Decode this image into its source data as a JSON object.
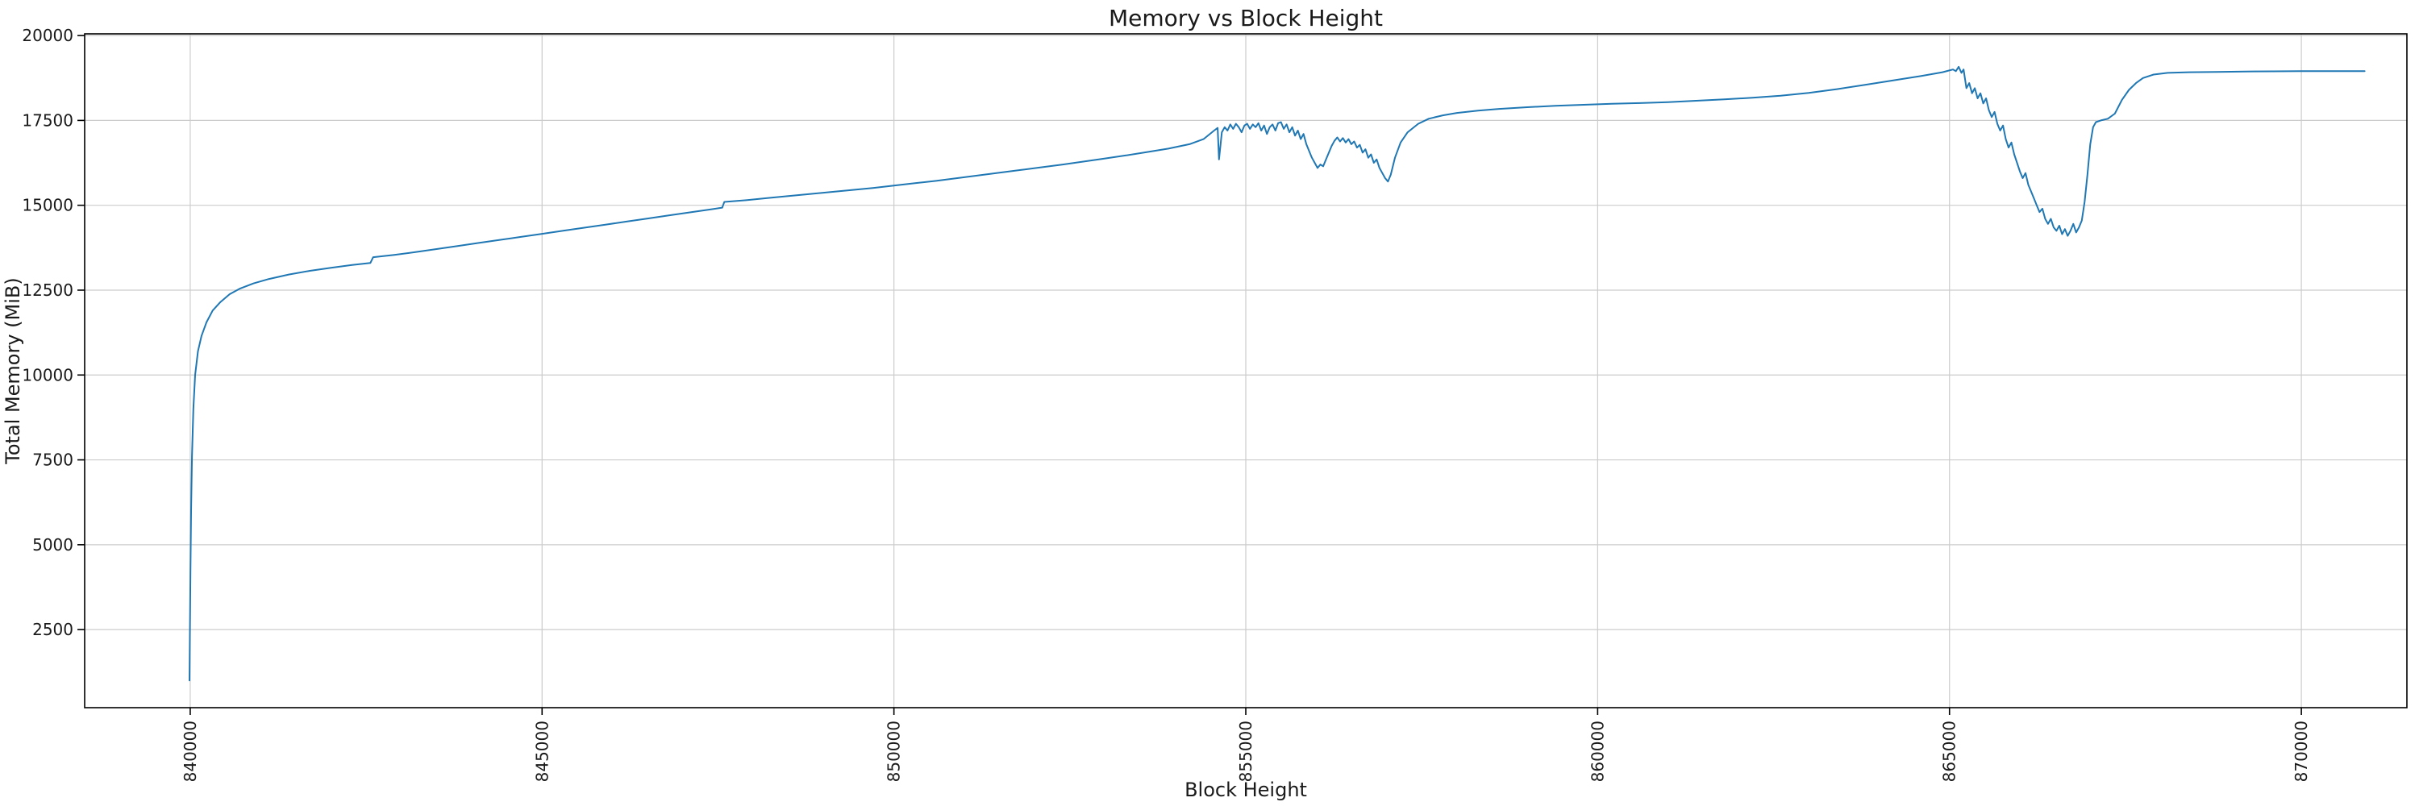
{
  "page": {
    "background": "#ffffff"
  },
  "chart_data": {
    "type": "line",
    "title": "Memory vs Block Height",
    "xlabel": "Block Height",
    "ylabel": "Total Memory (MiB)",
    "xlim": [
      838500,
      871500
    ],
    "ylim": [
      200,
      20050
    ],
    "xticks": [
      840000,
      845000,
      850000,
      855000,
      860000,
      865000,
      870000
    ],
    "yticks": [
      2500,
      5000,
      7500,
      10000,
      12500,
      15000,
      17500,
      20000
    ],
    "grid": true,
    "legend": "none",
    "line_color": "#1f77b4",
    "grid_color": "#cccccc",
    "spine_color": "#000000",
    "tick_color": "#1a1a1a",
    "series": [
      {
        "points": [
          [
            839990,
            1000
          ],
          [
            839996,
            2600
          ],
          [
            840003,
            4200
          ],
          [
            840012,
            6000
          ],
          [
            840025,
            7600
          ],
          [
            840045,
            9000
          ],
          [
            840070,
            10000
          ],
          [
            840110,
            10700
          ],
          [
            840160,
            11150
          ],
          [
            840230,
            11550
          ],
          [
            840320,
            11900
          ],
          [
            840430,
            12150
          ],
          [
            840560,
            12380
          ],
          [
            840710,
            12550
          ],
          [
            840900,
            12700
          ],
          [
            841120,
            12830
          ],
          [
            841400,
            12960
          ],
          [
            841700,
            13070
          ],
          [
            842000,
            13160
          ],
          [
            842300,
            13240
          ],
          [
            842560,
            13300
          ],
          [
            842600,
            13470
          ],
          [
            842900,
            13540
          ],
          [
            843200,
            13620
          ],
          [
            843500,
            13710
          ],
          [
            843800,
            13800
          ],
          [
            844100,
            13890
          ],
          [
            844400,
            13980
          ],
          [
            844700,
            14070
          ],
          [
            845000,
            14160
          ],
          [
            845300,
            14250
          ],
          [
            845600,
            14340
          ],
          [
            845900,
            14430
          ],
          [
            846200,
            14520
          ],
          [
            846500,
            14610
          ],
          [
            846800,
            14700
          ],
          [
            847100,
            14790
          ],
          [
            847400,
            14880
          ],
          [
            847560,
            14930
          ],
          [
            847590,
            15100
          ],
          [
            847900,
            15150
          ],
          [
            848200,
            15210
          ],
          [
            848500,
            15270
          ],
          [
            848800,
            15330
          ],
          [
            849100,
            15390
          ],
          [
            849400,
            15450
          ],
          [
            849700,
            15510
          ],
          [
            850000,
            15580
          ],
          [
            850300,
            15650
          ],
          [
            850600,
            15720
          ],
          [
            850900,
            15800
          ],
          [
            851200,
            15880
          ],
          [
            851500,
            15960
          ],
          [
            851800,
            16040
          ],
          [
            852100,
            16120
          ],
          [
            852400,
            16200
          ],
          [
            852700,
            16290
          ],
          [
            853000,
            16380
          ],
          [
            853300,
            16470
          ],
          [
            853600,
            16570
          ],
          [
            853900,
            16670
          ],
          [
            854200,
            16800
          ],
          [
            854400,
            16950
          ],
          [
            854550,
            17200
          ],
          [
            854600,
            17280
          ],
          [
            854620,
            16350
          ],
          [
            854660,
            17150
          ],
          [
            854700,
            17300
          ],
          [
            854740,
            17200
          ],
          [
            854780,
            17380
          ],
          [
            854820,
            17250
          ],
          [
            854860,
            17400
          ],
          [
            854900,
            17300
          ],
          [
            854940,
            17150
          ],
          [
            854980,
            17350
          ],
          [
            855020,
            17400
          ],
          [
            855060,
            17250
          ],
          [
            855100,
            17380
          ],
          [
            855140,
            17300
          ],
          [
            855180,
            17420
          ],
          [
            855220,
            17200
          ],
          [
            855260,
            17350
          ],
          [
            855300,
            17100
          ],
          [
            855340,
            17300
          ],
          [
            855380,
            17380
          ],
          [
            855420,
            17200
          ],
          [
            855460,
            17420
          ],
          [
            855500,
            17450
          ],
          [
            855540,
            17250
          ],
          [
            855580,
            17380
          ],
          [
            855620,
            17150
          ],
          [
            855660,
            17300
          ],
          [
            855700,
            17050
          ],
          [
            855740,
            17200
          ],
          [
            855780,
            16950
          ],
          [
            855820,
            17100
          ],
          [
            855860,
            16800
          ],
          [
            855900,
            16600
          ],
          [
            855940,
            16400
          ],
          [
            855980,
            16250
          ],
          [
            856020,
            16100
          ],
          [
            856060,
            16200
          ],
          [
            856100,
            16150
          ],
          [
            856140,
            16350
          ],
          [
            856180,
            16550
          ],
          [
            856220,
            16750
          ],
          [
            856260,
            16900
          ],
          [
            856300,
            17000
          ],
          [
            856340,
            16880
          ],
          [
            856380,
            16980
          ],
          [
            856420,
            16850
          ],
          [
            856460,
            16950
          ],
          [
            856500,
            16800
          ],
          [
            856540,
            16880
          ],
          [
            856580,
            16700
          ],
          [
            856620,
            16780
          ],
          [
            856660,
            16550
          ],
          [
            856700,
            16650
          ],
          [
            856740,
            16400
          ],
          [
            856780,
            16500
          ],
          [
            856820,
            16250
          ],
          [
            856860,
            16350
          ],
          [
            856900,
            16100
          ],
          [
            856940,
            15950
          ],
          [
            856980,
            15800
          ],
          [
            857020,
            15700
          ],
          [
            857060,
            15900
          ],
          [
            857120,
            16400
          ],
          [
            857200,
            16850
          ],
          [
            857300,
            17150
          ],
          [
            857450,
            17400
          ],
          [
            857600,
            17550
          ],
          [
            857800,
            17650
          ],
          [
            858000,
            17720
          ],
          [
            858300,
            17790
          ],
          [
            858600,
            17840
          ],
          [
            859000,
            17890
          ],
          [
            859400,
            17930
          ],
          [
            859800,
            17960
          ],
          [
            860200,
            17990
          ],
          [
            860600,
            18010
          ],
          [
            861000,
            18040
          ],
          [
            861400,
            18080
          ],
          [
            861800,
            18120
          ],
          [
            862200,
            18170
          ],
          [
            862600,
            18230
          ],
          [
            863000,
            18310
          ],
          [
            863400,
            18420
          ],
          [
            863800,
            18550
          ],
          [
            864200,
            18680
          ],
          [
            864600,
            18810
          ],
          [
            864900,
            18920
          ],
          [
            865050,
            19000
          ],
          [
            865090,
            18950
          ],
          [
            865130,
            19080
          ],
          [
            865170,
            18900
          ],
          [
            865200,
            19000
          ],
          [
            865240,
            18450
          ],
          [
            865280,
            18600
          ],
          [
            865320,
            18300
          ],
          [
            865360,
            18450
          ],
          [
            865400,
            18150
          ],
          [
            865440,
            18300
          ],
          [
            865480,
            18000
          ],
          [
            865520,
            18150
          ],
          [
            865560,
            17800
          ],
          [
            865600,
            17600
          ],
          [
            865640,
            17750
          ],
          [
            865680,
            17400
          ],
          [
            865720,
            17200
          ],
          [
            865760,
            17350
          ],
          [
            865800,
            16950
          ],
          [
            865840,
            16700
          ],
          [
            865880,
            16850
          ],
          [
            865920,
            16500
          ],
          [
            865960,
            16250
          ],
          [
            866000,
            16000
          ],
          [
            866040,
            15800
          ],
          [
            866080,
            15950
          ],
          [
            866120,
            15600
          ],
          [
            866160,
            15400
          ],
          [
            866200,
            15200
          ],
          [
            866240,
            15000
          ],
          [
            866280,
            14800
          ],
          [
            866320,
            14900
          ],
          [
            866360,
            14600
          ],
          [
            866400,
            14450
          ],
          [
            866440,
            14600
          ],
          [
            866480,
            14350
          ],
          [
            866520,
            14250
          ],
          [
            866560,
            14400
          ],
          [
            866600,
            14150
          ],
          [
            866640,
            14300
          ],
          [
            866680,
            14100
          ],
          [
            866720,
            14250
          ],
          [
            866760,
            14450
          ],
          [
            866800,
            14200
          ],
          [
            866840,
            14350
          ],
          [
            866880,
            14550
          ],
          [
            866920,
            15100
          ],
          [
            866960,
            15900
          ],
          [
            867000,
            16800
          ],
          [
            867040,
            17300
          ],
          [
            867080,
            17450
          ],
          [
            867150,
            17500
          ],
          [
            867250,
            17550
          ],
          [
            867350,
            17700
          ],
          [
            867450,
            18100
          ],
          [
            867550,
            18400
          ],
          [
            867650,
            18600
          ],
          [
            867750,
            18750
          ],
          [
            867900,
            18850
          ],
          [
            868100,
            18900
          ],
          [
            868400,
            18920
          ],
          [
            868800,
            18930
          ],
          [
            869200,
            18940
          ],
          [
            869600,
            18945
          ],
          [
            870000,
            18950
          ],
          [
            870900,
            18950
          ]
        ]
      }
    ]
  }
}
